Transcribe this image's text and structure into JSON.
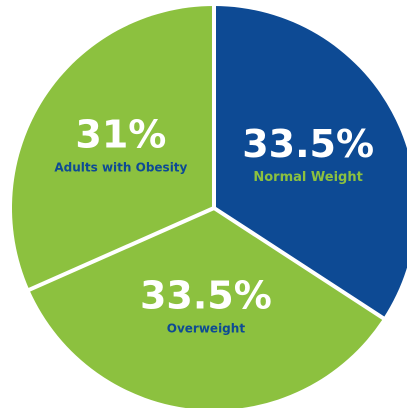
{
  "chart_data": {
    "type": "pie",
    "title": "",
    "slices": [
      {
        "label": "Normal Weight",
        "value": 33.5,
        "value_label": "33.5%",
        "color": "#0d4a94",
        "label_color": "#8cc13f"
      },
      {
        "label": "Overweight",
        "value": 33.5,
        "value_label": "33.5%",
        "color": "#8cc13f",
        "label_color": "#0d4a94"
      },
      {
        "label": "Adults with Obesity",
        "value": 31,
        "value_label": "31%",
        "color": "#8cc13f",
        "label_color": "#0d4a94"
      }
    ],
    "start_angle_deg": 0,
    "direction": "clockwise",
    "separator_color": "#ffffff",
    "legend": "none"
  }
}
